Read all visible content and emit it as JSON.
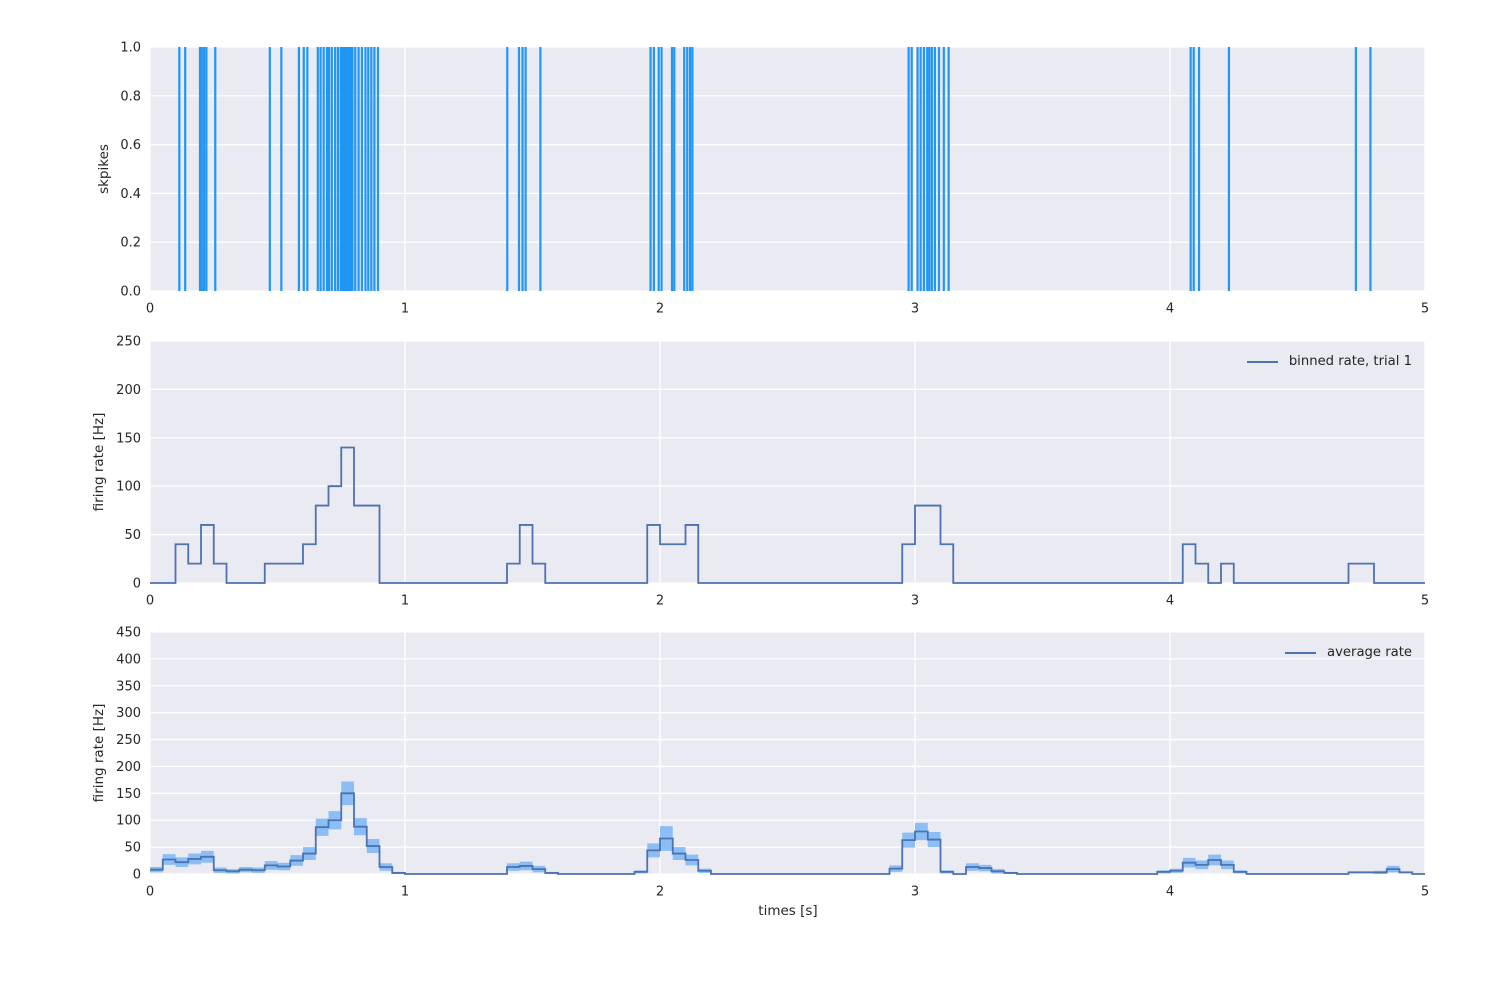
{
  "figure": {
    "background": "#ffffff",
    "axes_background": "#eaeaf2",
    "grid_color": "#ffffff",
    "text_color": "#262626",
    "spike_color": "#2196f3",
    "line_color": "#4c72b0",
    "band_color": "#8abef5"
  },
  "panels": {
    "raster": {
      "ylabel": "skpikes",
      "ytick_labels": [
        "0.0",
        "0.2",
        "0.4",
        "0.6",
        "0.8",
        "1.0"
      ],
      "xtick_labels": [
        "0",
        "1",
        "2",
        "3",
        "4",
        "5"
      ]
    },
    "trial": {
      "ylabel": "firing rate [Hz]",
      "ytick_labels": [
        "0",
        "50",
        "100",
        "150",
        "200",
        "250"
      ],
      "xtick_labels": [
        "0",
        "1",
        "2",
        "3",
        "4",
        "5"
      ],
      "legend": "binned rate, trial 1"
    },
    "average": {
      "ylabel": "firing rate [Hz]",
      "ytick_labels": [
        "0",
        "50",
        "100",
        "150",
        "200",
        "250",
        "300",
        "350",
        "400",
        "450"
      ],
      "xtick_labels": [
        "0",
        "1",
        "2",
        "3",
        "4",
        "5"
      ],
      "legend": "average rate",
      "xlabel": "times [s]"
    }
  },
  "chart_data": [
    {
      "type": "scatter",
      "subtype": "event-raster",
      "title": "",
      "ylabel": "skpikes",
      "xlim": [
        0,
        5
      ],
      "ylim": [
        0.0,
        1.0
      ],
      "yticks": [
        0.0,
        0.2,
        0.4,
        0.6,
        0.8,
        1.0
      ],
      "xticks": [
        0,
        1,
        2,
        3,
        4,
        5
      ],
      "grid": true,
      "event_times_s": [
        0.115,
        0.138,
        0.196,
        0.203,
        0.212,
        0.221,
        0.256,
        0.47,
        0.515,
        0.584,
        0.603,
        0.617,
        0.658,
        0.669,
        0.681,
        0.694,
        0.702,
        0.713,
        0.726,
        0.737,
        0.748,
        0.752,
        0.758,
        0.765,
        0.772,
        0.78,
        0.787,
        0.794,
        0.805,
        0.818,
        0.831,
        0.845,
        0.856,
        0.868,
        0.88,
        0.894,
        1.401,
        1.447,
        1.461,
        1.473,
        1.531,
        1.963,
        1.976,
        1.995,
        2.006,
        2.047,
        2.056,
        2.095,
        2.107,
        2.118,
        2.127,
        2.975,
        2.987,
        3.01,
        3.022,
        3.035,
        3.048,
        3.056,
        3.066,
        3.078,
        3.094,
        3.113,
        3.132,
        4.081,
        4.093,
        4.114,
        4.231,
        4.729,
        4.786
      ]
    },
    {
      "type": "line",
      "subtype": "step-post",
      "series_name": "binned rate, trial 1",
      "ylabel": "firing rate [Hz]",
      "xlim": [
        0,
        5
      ],
      "ylim": [
        0,
        250
      ],
      "yticks": [
        0,
        50,
        100,
        150,
        200,
        250
      ],
      "xticks": [
        0,
        1,
        2,
        3,
        4,
        5
      ],
      "grid": true,
      "legend_position": "upper right",
      "bin_width_s": 0.05,
      "default_rate_hz": 0,
      "nonzero_bins_t0_rate": [
        [
          0.1,
          40
        ],
        [
          0.15,
          20
        ],
        [
          0.2,
          60
        ],
        [
          0.25,
          20
        ],
        [
          0.45,
          20
        ],
        [
          0.5,
          20
        ],
        [
          0.55,
          20
        ],
        [
          0.6,
          40
        ],
        [
          0.65,
          80
        ],
        [
          0.7,
          100
        ],
        [
          0.75,
          140
        ],
        [
          0.8,
          80
        ],
        [
          0.85,
          80
        ],
        [
          1.4,
          20
        ],
        [
          1.45,
          60
        ],
        [
          1.5,
          20
        ],
        [
          1.95,
          60
        ],
        [
          2.0,
          40
        ],
        [
          2.05,
          40
        ],
        [
          2.1,
          60
        ],
        [
          2.95,
          40
        ],
        [
          3.0,
          80
        ],
        [
          3.05,
          80
        ],
        [
          3.1,
          40
        ],
        [
          4.05,
          40
        ],
        [
          4.1,
          20
        ],
        [
          4.2,
          20
        ],
        [
          4.7,
          20
        ],
        [
          4.75,
          20
        ]
      ]
    },
    {
      "type": "line",
      "subtype": "step-post-with-band",
      "series_name": "average rate",
      "ylabel": "firing rate [Hz]",
      "xlabel": "times [s]",
      "xlim": [
        0,
        5
      ],
      "ylim": [
        0,
        450
      ],
      "yticks": [
        0,
        50,
        100,
        150,
        200,
        250,
        300,
        350,
        400,
        450
      ],
      "xticks": [
        0,
        1,
        2,
        3,
        4,
        5
      ],
      "grid": true,
      "legend_position": "upper right",
      "bin_width_s": 0.05,
      "default_rate_hz": 0,
      "nonzero_bins_t0_mean_err": [
        [
          0.0,
          8,
          5
        ],
        [
          0.05,
          27,
          10
        ],
        [
          0.1,
          22,
          9
        ],
        [
          0.15,
          28,
          10
        ],
        [
          0.2,
          32,
          11
        ],
        [
          0.25,
          7,
          5
        ],
        [
          0.3,
          5,
          4
        ],
        [
          0.35,
          8,
          5
        ],
        [
          0.4,
          7,
          5
        ],
        [
          0.45,
          16,
          8
        ],
        [
          0.5,
          14,
          7
        ],
        [
          0.55,
          25,
          10
        ],
        [
          0.6,
          38,
          12
        ],
        [
          0.65,
          87,
          16
        ],
        [
          0.7,
          100,
          17
        ],
        [
          0.75,
          150,
          22
        ],
        [
          0.8,
          88,
          16
        ],
        [
          0.85,
          52,
          13
        ],
        [
          0.9,
          13,
          7
        ],
        [
          0.95,
          2,
          2
        ],
        [
          1.4,
          13,
          7
        ],
        [
          1.45,
          15,
          8
        ],
        [
          1.5,
          9,
          6
        ],
        [
          1.55,
          2,
          2
        ],
        [
          1.9,
          4,
          3
        ],
        [
          1.95,
          44,
          13
        ],
        [
          2.0,
          66,
          23
        ],
        [
          2.05,
          38,
          12
        ],
        [
          2.1,
          26,
          10
        ],
        [
          2.15,
          6,
          4
        ],
        [
          2.9,
          10,
          6
        ],
        [
          2.95,
          63,
          14
        ],
        [
          3.0,
          79,
          16
        ],
        [
          3.05,
          64,
          14
        ],
        [
          3.1,
          4,
          3
        ],
        [
          3.2,
          13,
          7
        ],
        [
          3.25,
          11,
          6
        ],
        [
          3.3,
          5,
          4
        ],
        [
          3.35,
          2,
          2
        ],
        [
          3.95,
          4,
          3
        ],
        [
          4.0,
          6,
          4
        ],
        [
          4.05,
          21,
          9
        ],
        [
          4.1,
          17,
          8
        ],
        [
          4.15,
          26,
          10
        ],
        [
          4.2,
          17,
          8
        ],
        [
          4.25,
          4,
          3
        ],
        [
          4.7,
          3,
          2
        ],
        [
          4.75,
          3,
          2
        ],
        [
          4.8,
          3,
          3
        ],
        [
          4.85,
          9,
          6
        ],
        [
          4.9,
          3,
          2
        ]
      ]
    }
  ]
}
